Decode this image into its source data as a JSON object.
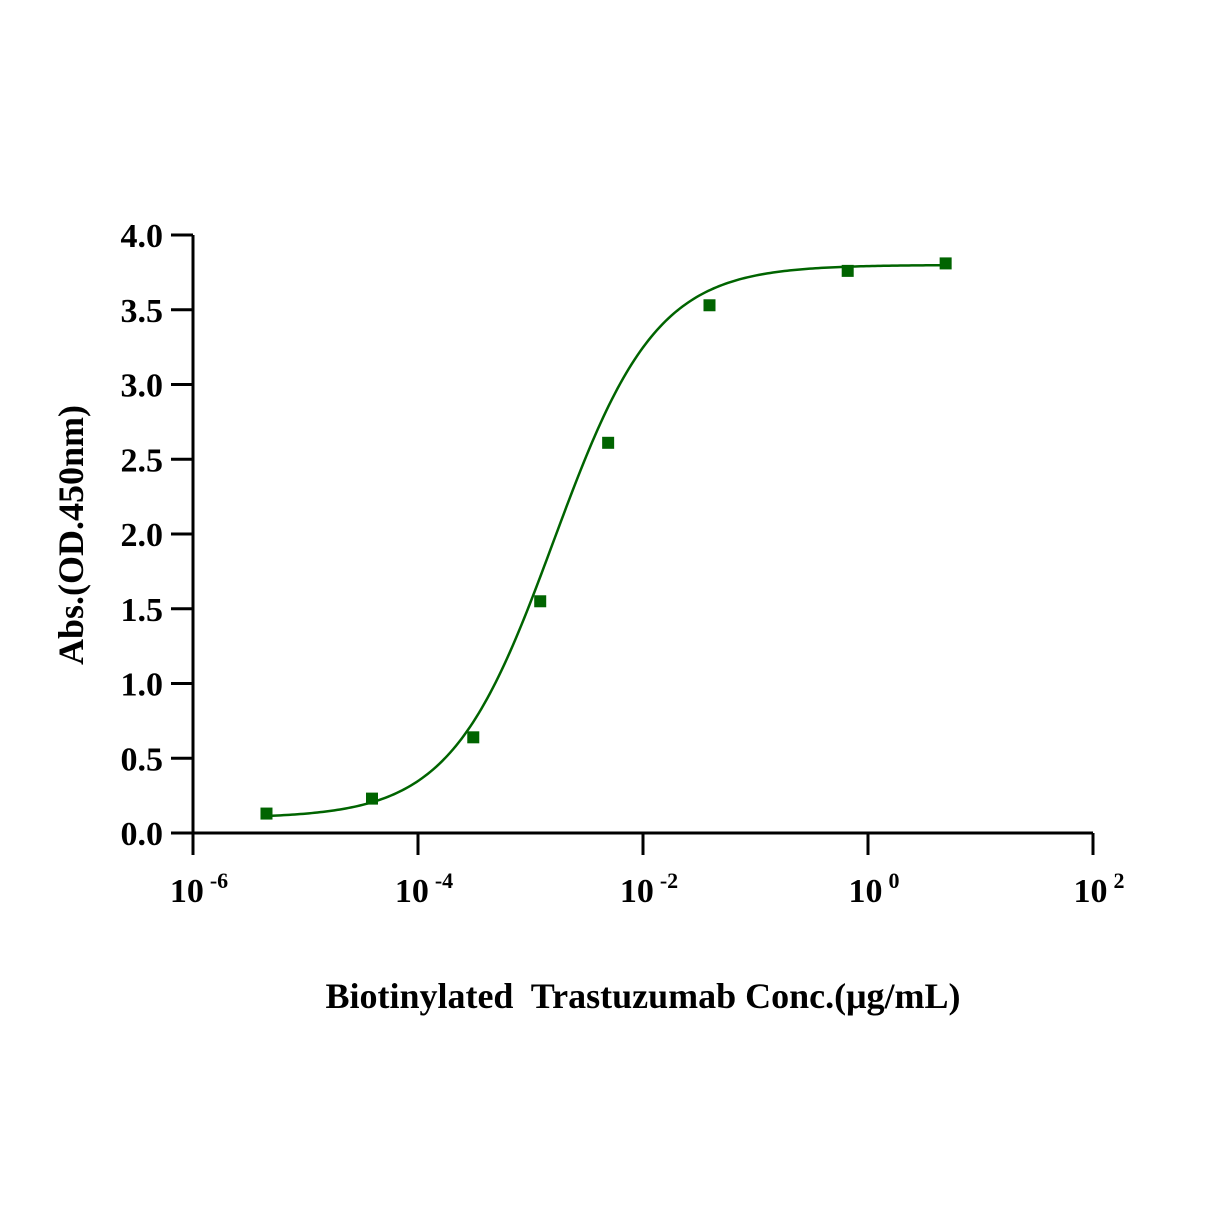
{
  "chart_data": {
    "type": "scatter",
    "xlabel": "Biotinylated  Trastuzumab Conc.(μg/mL)",
    "ylabel": "Abs.(OD.450nm)",
    "xscale": "log",
    "xlim": [
      1e-06,
      100
    ],
    "ylim": [
      0,
      4
    ],
    "x_ticks": [
      {
        "value": 1e-06,
        "base": "10",
        "exp": "-6"
      },
      {
        "value": 0.0001,
        "base": "10",
        "exp": "-4"
      },
      {
        "value": 0.01,
        "base": "10",
        "exp": "-2"
      },
      {
        "value": 1,
        "base": "10",
        "exp": "0"
      },
      {
        "value": 100,
        "base": "10",
        "exp": "2"
      }
    ],
    "y_ticks": [
      {
        "value": 0,
        "label": "0.0"
      },
      {
        "value": 0.5,
        "label": "0.5"
      },
      {
        "value": 1,
        "label": "1.0"
      },
      {
        "value": 1.5,
        "label": "1.5"
      },
      {
        "value": 2,
        "label": "2.0"
      },
      {
        "value": 2.5,
        "label": "2.5"
      },
      {
        "value": 3,
        "label": "3.0"
      },
      {
        "value": 3.5,
        "label": "3.5"
      },
      {
        "value": 4,
        "label": "4.0"
      }
    ],
    "grid": false,
    "legend": "none",
    "series": [
      {
        "color": "#006400",
        "marker": "square",
        "fit": "4PL sigmoid",
        "x": [
          4.5e-06,
          3.9e-05,
          0.00031,
          0.00122,
          0.0049,
          0.039,
          0.66,
          4.9
        ],
        "y": [
          0.13,
          0.23,
          0.64,
          1.55,
          2.61,
          3.53,
          3.76,
          3.81
        ]
      }
    ],
    "fit_params": {
      "bottom": 0.1,
      "top": 3.8,
      "ec50": 0.0016,
      "hill": 0.95
    }
  }
}
